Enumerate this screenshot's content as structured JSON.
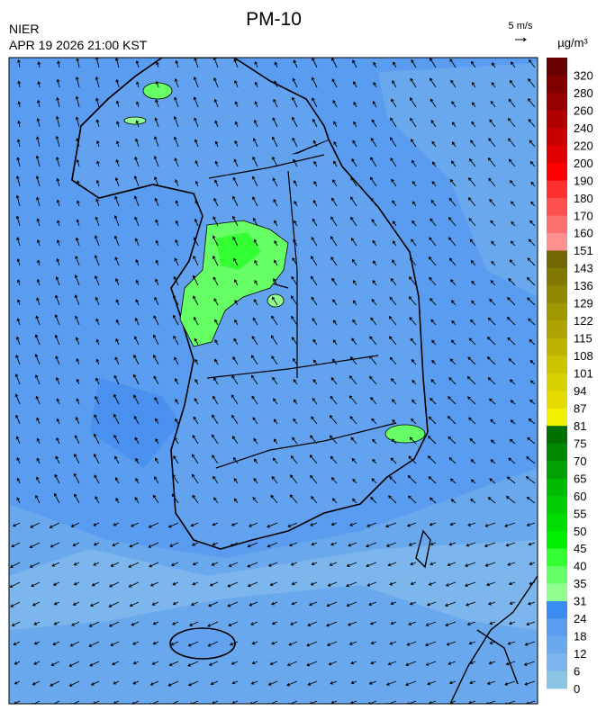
{
  "header": {
    "title": "PM-10",
    "agency": "NIER",
    "datetime": "APR 19 2026 21:00 KST",
    "wind_scale": "5 m/s",
    "unit": "µg/m³"
  },
  "colorbar": {
    "ticks": [
      0,
      6,
      12,
      18,
      24,
      31,
      35,
      40,
      45,
      50,
      55,
      60,
      65,
      70,
      75,
      81,
      87,
      94,
      101,
      108,
      115,
      122,
      129,
      136,
      143,
      151,
      160,
      170,
      180,
      190,
      200,
      220,
      240,
      260,
      280,
      320
    ],
    "colors": [
      "#8cc4e4",
      "#7cb6ec",
      "#6aa8ee",
      "#5a9cf0",
      "#3a8cf0",
      "#90ff90",
      "#66ff66",
      "#33ff33",
      "#00ee00",
      "#00dd00",
      "#00cc00",
      "#00bb00",
      "#00a000",
      "#008800",
      "#007000",
      "#f0f000",
      "#e4dc00",
      "#d8d000",
      "#ccc400",
      "#bcb400",
      "#aca400",
      "#a09800",
      "#908800",
      "#807800",
      "#706800",
      "#ff9090",
      "#ff7070",
      "#ff5050",
      "#ff3030",
      "#ff0000",
      "#e00000",
      "#c80000",
      "#b00000",
      "#980000",
      "#800000",
      "#680000"
    ]
  }
}
